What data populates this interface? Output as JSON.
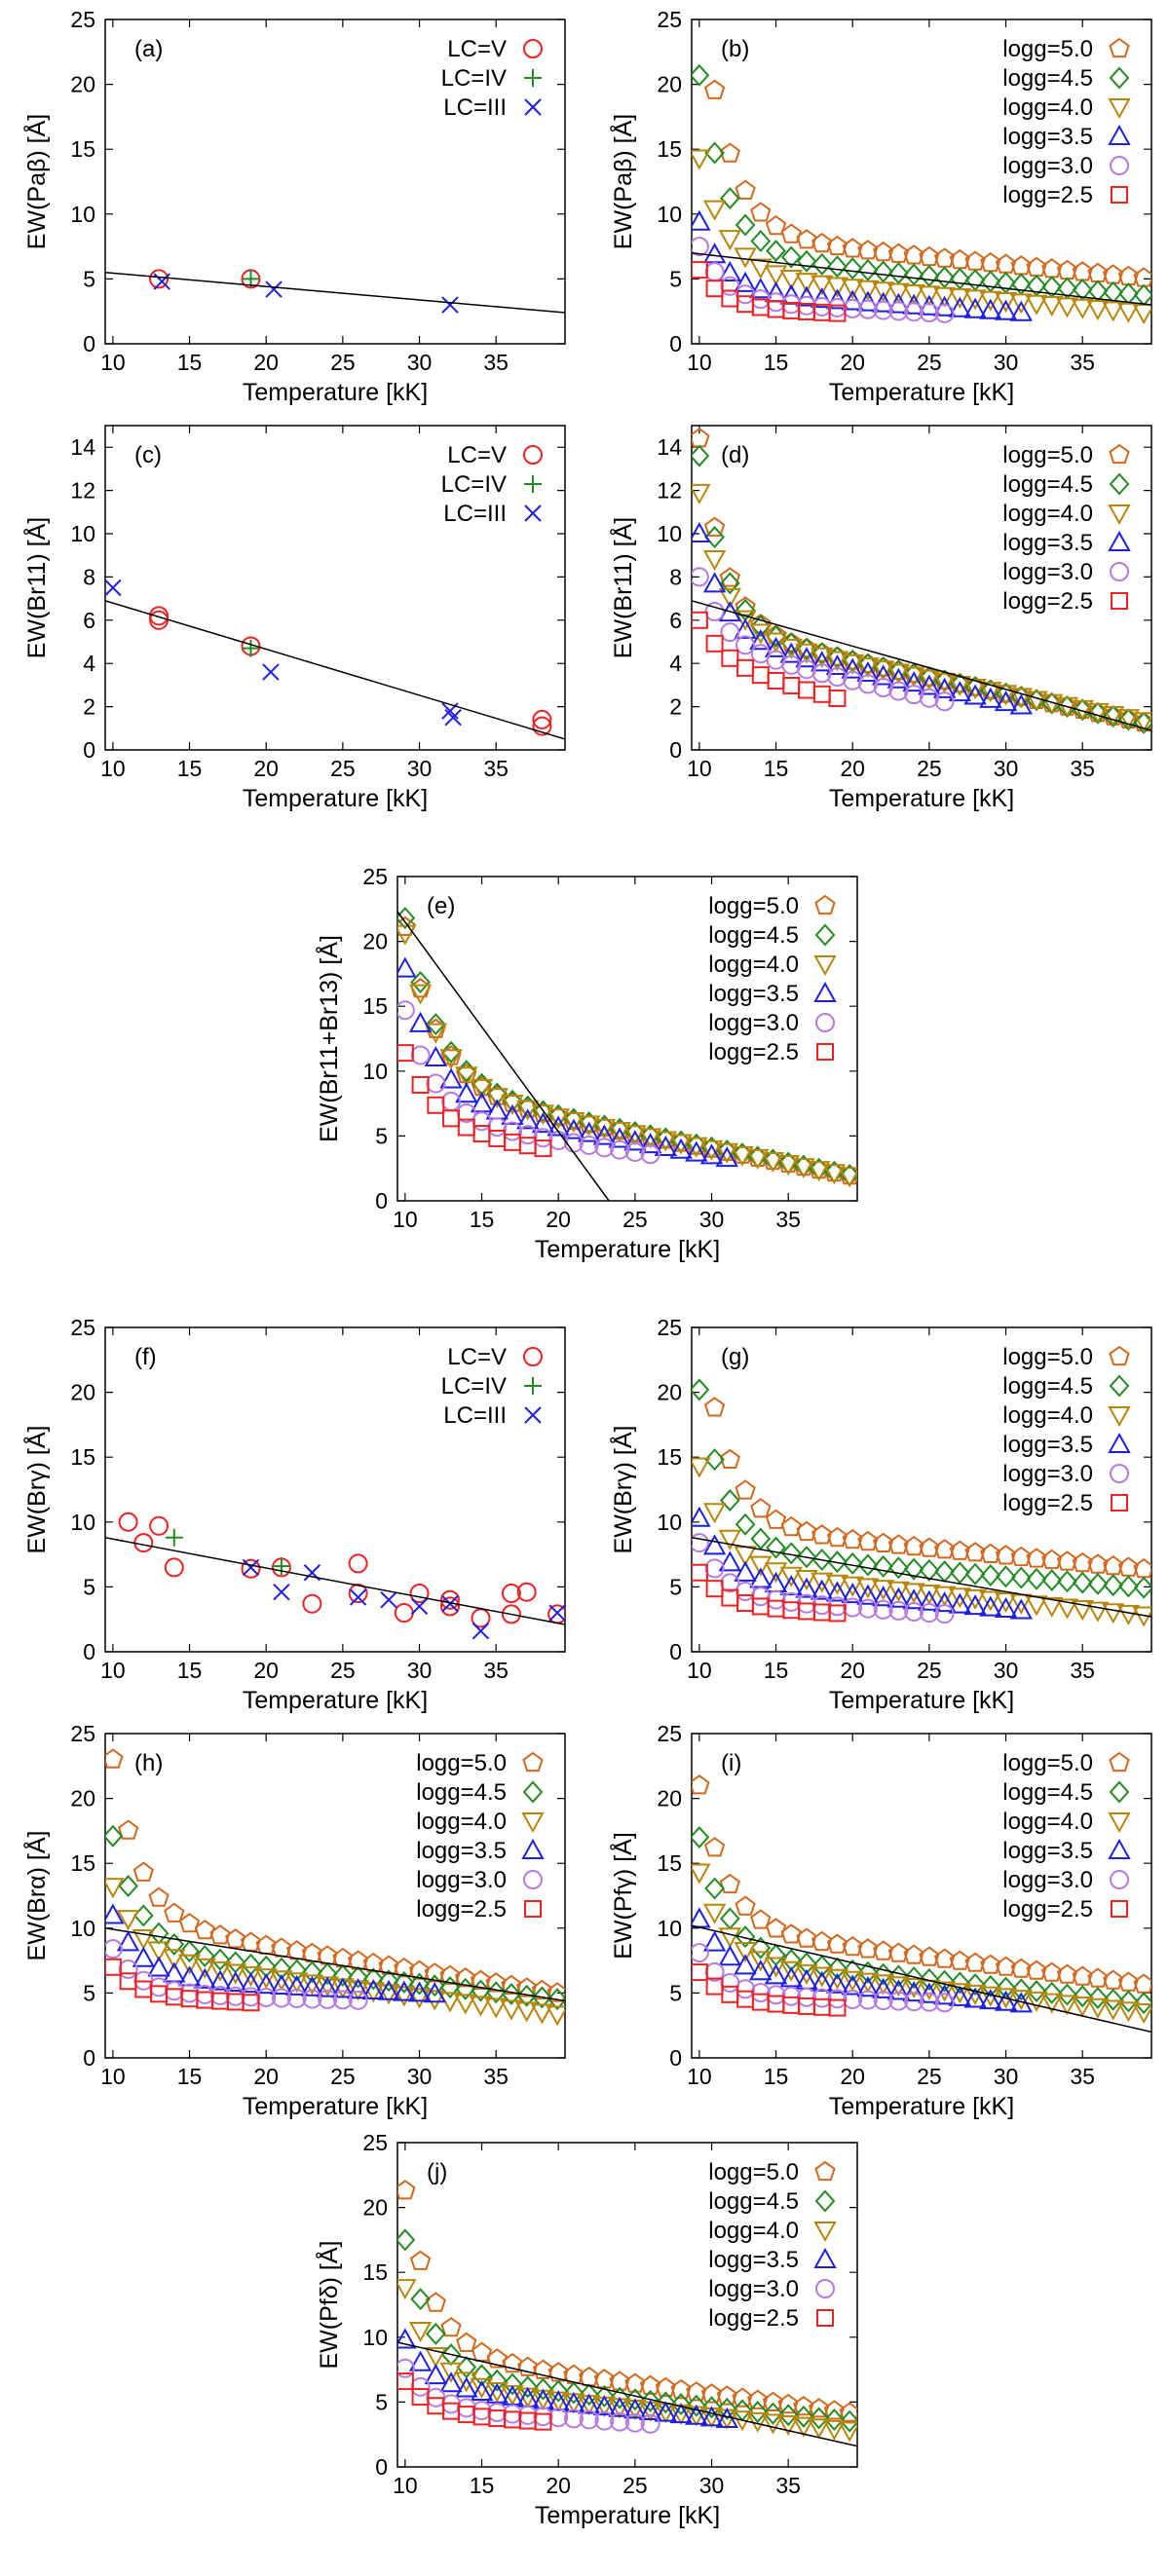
{
  "figure": {
    "marker_legend": {
      "logg": [
        {
          "label": "logg=5.0",
          "marker": "pentagon",
          "color": "#d2691e"
        },
        {
          "label": "logg=4.5",
          "marker": "diamond",
          "color": "#228b22"
        },
        {
          "label": "logg=4.0",
          "marker": "triangle-down",
          "color": "#b8860b"
        },
        {
          "label": "logg=3.5",
          "marker": "triangle-up",
          "color": "#1f1fe0"
        },
        {
          "label": "logg=3.0",
          "marker": "circle",
          "color": "#b57be0"
        },
        {
          "label": "logg=2.5",
          "marker": "square",
          "color": "#ee2222"
        }
      ],
      "lc": [
        {
          "label": "LC=V",
          "marker": "circle",
          "color": "#ee2222"
        },
        {
          "label": "LC=IV",
          "marker": "plus",
          "color": "#228b22"
        },
        {
          "label": "LC=III",
          "marker": "x",
          "color": "#1f1fe0"
        }
      ]
    }
  },
  "chart_data": [
    {
      "id": "a",
      "type": "scatter",
      "panel_label": "(a)",
      "xlabel": "Temperature [kK]",
      "ylabel": "EW(Paβ) [Å]",
      "xlim": [
        9.5,
        39.5
      ],
      "ylim": [
        0,
        25
      ],
      "xticks": [
        10,
        15,
        20,
        25,
        30,
        35
      ],
      "yticks": [
        0,
        5,
        10,
        15,
        20,
        25
      ],
      "legend": "lc",
      "series": [
        {
          "name": "LC=V",
          "points": [
            [
              13,
              5.0
            ],
            [
              19,
              5.0
            ]
          ]
        },
        {
          "name": "LC=IV",
          "points": [
            [
              19,
              5.0
            ]
          ]
        },
        {
          "name": "LC=III",
          "points": [
            [
              13.2,
              4.8
            ],
            [
              20.5,
              4.2
            ],
            [
              32,
              3.0
            ]
          ]
        }
      ],
      "fit_line": [
        [
          9.5,
          5.5
        ],
        [
          39.5,
          2.4
        ]
      ]
    },
    {
      "id": "b",
      "type": "scatter",
      "panel_label": "(b)",
      "xlabel": "Temperature [kK]",
      "ylabel": "EW(Paβ) [Å]",
      "xlim": [
        9.5,
        39.5
      ],
      "ylim": [
        0,
        25
      ],
      "xticks": [
        10,
        15,
        20,
        25,
        30,
        35
      ],
      "yticks": [
        0,
        5,
        10,
        15,
        20,
        25
      ],
      "legend": "logg",
      "models": {
        "logg=5.0": {
          "t0": 10,
          "t1": 39,
          "a": 19.5,
          "b": 8.4,
          "k": 0.55,
          "s": -0.115
        },
        "logg=4.5": {
          "t0": 10,
          "t1": 39,
          "a": 13.9,
          "b": 6.8,
          "k": 0.55,
          "s": -0.105
        },
        "logg=4.0": {
          "t0": 10,
          "t1": 39,
          "a": 9.0,
          "b": 5.3,
          "k": 0.55,
          "s": -0.1
        },
        "logg=3.5": {
          "t0": 10,
          "t1": 31,
          "a": 5.4,
          "b": 4.0,
          "k": 0.6,
          "s": -0.075
        },
        "logg=3.0": {
          "t0": 10,
          "t1": 26,
          "a": 4.2,
          "b": 3.3,
          "k": 0.6,
          "s": -0.06
        },
        "logg=2.5": {
          "t0": 10,
          "t1": 19,
          "a": 2.9,
          "b": 2.8,
          "k": 0.65,
          "s": -0.05
        }
      },
      "fit_line": [
        [
          9.5,
          7.0
        ],
        [
          39.5,
          3.0
        ]
      ]
    },
    {
      "id": "c",
      "type": "scatter",
      "panel_label": "(c)",
      "xlabel": "Temperature [kK]",
      "ylabel": "EW(Br11) [Å]",
      "xlim": [
        9.5,
        39.5
      ],
      "ylim": [
        0,
        15
      ],
      "xticks": [
        10,
        15,
        20,
        25,
        30,
        35
      ],
      "yticks": [
        0,
        2,
        4,
        6,
        8,
        10,
        12,
        14
      ],
      "legend": "lc",
      "series": [
        {
          "name": "LC=V",
          "points": [
            [
              13,
              6.2
            ],
            [
              13,
              6.0
            ],
            [
              19,
              4.8
            ],
            [
              38,
              1.4
            ],
            [
              38,
              1.1
            ]
          ]
        },
        {
          "name": "LC=IV",
          "points": [
            [
              19,
              4.7
            ]
          ]
        },
        {
          "name": "LC=III",
          "points": [
            [
              10,
              7.5
            ],
            [
              20.3,
              3.6
            ],
            [
              32,
              1.8
            ],
            [
              32.2,
              1.5
            ]
          ]
        }
      ],
      "fit_line": [
        [
          9.5,
          6.9
        ],
        [
          39.5,
          0.5
        ]
      ]
    },
    {
      "id": "d",
      "type": "scatter",
      "panel_label": "(d)",
      "xlabel": "Temperature [kK]",
      "ylabel": "EW(Br11) [Å]",
      "xlim": [
        9.5,
        39.5
      ],
      "ylim": [
        0,
        15
      ],
      "xticks": [
        10,
        15,
        20,
        25,
        30,
        35
      ],
      "yticks": [
        0,
        2,
        4,
        6,
        8,
        10,
        12,
        14
      ],
      "legend": "logg",
      "models": {
        "logg=5.0": {
          "t0": 10,
          "t1": 39,
          "a": 8.8,
          "b": 5.6,
          "k": 0.6,
          "s": -0.15
        },
        "logg=4.5": {
          "t0": 10,
          "t1": 39,
          "a": 8.0,
          "b": 5.6,
          "k": 0.6,
          "s": -0.15
        },
        "logg=4.0": {
          "t0": 10,
          "t1": 39,
          "a": 6.5,
          "b": 5.4,
          "k": 0.6,
          "s": -0.14
        },
        "logg=3.5": {
          "t0": 10,
          "t1": 31,
          "a": 4.8,
          "b": 5.2,
          "k": 0.6,
          "s": -0.15
        },
        "logg=3.0": {
          "t0": 10,
          "t1": 26,
          "a": 3.2,
          "b": 4.8,
          "k": 0.6,
          "s": -0.16
        },
        "logg=2.5": {
          "t0": 10,
          "t1": 19,
          "a": 2.0,
          "b": 4.0,
          "k": 0.6,
          "s": -0.18
        }
      },
      "fit_line": [
        [
          9.5,
          6.9
        ],
        [
          39.5,
          0.9
        ]
      ]
    },
    {
      "id": "e",
      "type": "scatter",
      "panel_label": "(e)",
      "xlabel": "Temperature [kK]",
      "ylabel": "EW(Br11+Br13) [Å]",
      "xlim": [
        9.5,
        39.5
      ],
      "ylim": [
        0,
        25
      ],
      "xticks": [
        10,
        15,
        20,
        25,
        30,
        35
      ],
      "yticks": [
        0,
        5,
        10,
        15,
        20,
        25
      ],
      "legend": "logg",
      "models": {
        "logg=5.0": {
          "t0": 10,
          "t1": 39,
          "a": 12.5,
          "b": 8.6,
          "k": 0.45,
          "s": -0.23
        },
        "logg=4.5": {
          "t0": 10,
          "t1": 39,
          "a": 13.0,
          "b": 8.8,
          "k": 0.45,
          "s": -0.235
        },
        "logg=4.0": {
          "t0": 10,
          "t1": 39,
          "a": 12.0,
          "b": 8.6,
          "k": 0.45,
          "s": -0.23
        },
        "logg=3.5": {
          "t0": 10,
          "t1": 31,
          "a": 10.2,
          "b": 7.7,
          "k": 0.5,
          "s": -0.21
        },
        "logg=3.0": {
          "t0": 10,
          "t1": 26,
          "a": 8.4,
          "b": 6.3,
          "k": 0.5,
          "s": -0.17
        },
        "logg=2.5": {
          "t0": 10,
          "t1": 19,
          "a": 5.8,
          "b": 5.6,
          "k": 0.5,
          "s": -0.18
        }
      },
      "fit_line": [
        [
          9.5,
          22.3
        ],
        [
          23.3,
          0
        ]
      ]
    },
    {
      "id": "f",
      "type": "scatter",
      "panel_label": "(f)",
      "xlabel": "Temperature [kK]",
      "ylabel": "EW(Brγ) [Å]",
      "xlim": [
        9.5,
        39.5
      ],
      "ylim": [
        0,
        25
      ],
      "xticks": [
        10,
        15,
        20,
        25,
        30,
        35
      ],
      "yticks": [
        0,
        5,
        10,
        15,
        20,
        25
      ],
      "legend": "lc",
      "series": [
        {
          "name": "LC=V",
          "points": [
            [
              11,
              10.0
            ],
            [
              12,
              8.4
            ],
            [
              13,
              9.7
            ],
            [
              14,
              6.5
            ],
            [
              19,
              6.4
            ],
            [
              21,
              6.5
            ],
            [
              23,
              3.7
            ],
            [
              26,
              6.8
            ],
            [
              26,
              4.5
            ],
            [
              29,
              3.0
            ],
            [
              30,
              4.5
            ],
            [
              32,
              4.0
            ],
            [
              32,
              3.5
            ],
            [
              34,
              2.6
            ],
            [
              36,
              2.9
            ],
            [
              36,
              4.5
            ],
            [
              37,
              4.6
            ],
            [
              39,
              2.9
            ]
          ]
        },
        {
          "name": "LC=IV",
          "points": [
            [
              14,
              8.8
            ],
            [
              21,
              6.6
            ]
          ]
        },
        {
          "name": "LC=III",
          "points": [
            [
              19,
              6.5
            ],
            [
              21,
              4.6
            ],
            [
              23,
              6.1
            ],
            [
              26,
              4.2
            ],
            [
              28,
              4.0
            ],
            [
              30,
              3.5
            ],
            [
              32,
              3.7
            ],
            [
              34,
              1.6
            ],
            [
              39,
              3.0
            ]
          ]
        }
      ],
      "fit_line": [
        [
          9.5,
          8.8
        ],
        [
          39.5,
          2.1
        ]
      ]
    },
    {
      "id": "g",
      "type": "scatter",
      "panel_label": "(g)",
      "xlabel": "Temperature [kK]",
      "ylabel": "EW(Brγ) [Å]",
      "xlim": [
        9.5,
        39.5
      ],
      "ylim": [
        0,
        25
      ],
      "xticks": [
        10,
        15,
        20,
        25,
        30,
        35
      ],
      "yticks": [
        0,
        5,
        10,
        15,
        20,
        25
      ],
      "legend": "logg",
      "models": {
        "logg=5.0": {
          "t0": 10,
          "t1": 39,
          "a": 16.0,
          "b": 9.7,
          "k": 0.55,
          "s": -0.115
        },
        "logg=4.5": {
          "t0": 10,
          "t1": 39,
          "a": 12.5,
          "b": 7.7,
          "k": 0.55,
          "s": -0.095
        },
        "logg=4.0": {
          "t0": 10,
          "t1": 39,
          "a": 8.0,
          "b": 6.3,
          "k": 0.55,
          "s": -0.12
        },
        "logg=3.5": {
          "t0": 10,
          "t1": 31,
          "a": 4.8,
          "b": 5.5,
          "k": 0.55,
          "s": -0.11
        },
        "logg=3.0": {
          "t0": 10,
          "t1": 26,
          "a": 4.2,
          "b": 4.2,
          "k": 0.6,
          "s": -0.08
        },
        "logg=2.5": {
          "t0": 10,
          "t1": 19,
          "a": 2.6,
          "b": 3.5,
          "k": 0.6,
          "s": -0.06
        }
      },
      "fit_line": [
        [
          9.5,
          8.8
        ],
        [
          39.5,
          2.7
        ]
      ]
    },
    {
      "id": "h",
      "type": "scatter",
      "panel_label": "(h)",
      "xlabel": "Temperature [kK]",
      "ylabel": "EW(Brα) [Å]",
      "xlim": [
        9.5,
        39.5
      ],
      "ylim": [
        0,
        25
      ],
      "xticks": [
        10,
        15,
        20,
        25,
        30,
        35
      ],
      "yticks": [
        0,
        5,
        10,
        15,
        20,
        25
      ],
      "legend": "logg",
      "models": {
        "logg=5.0": {
          "t0": 10,
          "t1": 39,
          "a": 12.5,
          "b": 10.5,
          "k": 0.55,
          "s": -0.19
        },
        "logg=4.5": {
          "t0": 10,
          "t1": 39,
          "a": 8.8,
          "b": 8.3,
          "k": 0.55,
          "s": -0.13
        },
        "logg=4.0": {
          "t0": 10,
          "t1": 39,
          "a": 5.5,
          "b": 7.7,
          "k": 0.55,
          "s": -0.15
        },
        "logg=3.5": {
          "t0": 10,
          "t1": 31,
          "a": 4.8,
          "b": 6.2,
          "k": 0.55,
          "s": -0.06
        },
        "logg=3.0": {
          "t0": 10,
          "t1": 26,
          "a": 3.4,
          "b": 5.0,
          "k": 0.6,
          "s": -0.035
        },
        "logg=2.5": {
          "t0": 10,
          "t1": 19,
          "a": 2.3,
          "b": 4.7,
          "k": 0.6,
          "s": -0.05
        }
      },
      "fit_line": [
        [
          9.5,
          10.0
        ],
        [
          39.5,
          4.4
        ]
      ]
    },
    {
      "id": "i",
      "type": "scatter",
      "panel_label": "(i)",
      "xlabel": "Temperature [kK]",
      "ylabel": "EW(Pfγ) [Å]",
      "xlim": [
        9.5,
        39.5
      ],
      "ylim": [
        0,
        25
      ],
      "xticks": [
        10,
        15,
        20,
        25,
        30,
        35
      ],
      "yticks": [
        0,
        5,
        10,
        15,
        20,
        25
      ],
      "legend": "logg",
      "models": {
        "logg=5.0": {
          "t0": 10,
          "t1": 39,
          "a": 11.0,
          "b": 10.0,
          "k": 0.55,
          "s": -0.15
        },
        "logg=4.5": {
          "t0": 10,
          "t1": 39,
          "a": 9.0,
          "b": 8.0,
          "k": 0.55,
          "s": -0.13
        },
        "logg=4.0": {
          "t0": 10,
          "t1": 39,
          "a": 7.0,
          "b": 7.3,
          "k": 0.55,
          "s": -0.13
        },
        "logg=3.5": {
          "t0": 10,
          "t1": 31,
          "a": 4.0,
          "b": 6.7,
          "k": 0.55,
          "s": -0.12
        },
        "logg=3.0": {
          "t0": 10,
          "t1": 26,
          "a": 3.2,
          "b": 4.9,
          "k": 0.6,
          "s": -0.04
        },
        "logg=2.5": {
          "t0": 10,
          "t1": 19,
          "a": 2.3,
          "b": 4.3,
          "k": 0.6,
          "s": -0.05
        }
      },
      "fit_line": [
        [
          9.5,
          10.2
        ],
        [
          39.5,
          2.0
        ]
      ]
    },
    {
      "id": "j",
      "type": "scatter",
      "panel_label": "(j)",
      "xlabel": "Temperature [kK]",
      "ylabel": "EW(Pfδ) [Å]",
      "xlim": [
        9.5,
        39.5
      ],
      "ylim": [
        0,
        25
      ],
      "xticks": [
        10,
        15,
        20,
        25,
        30,
        35
      ],
      "yticks": [
        0,
        5,
        10,
        15,
        20,
        25
      ],
      "legend": "logg",
      "models": {
        "logg=5.0": {
          "t0": 10,
          "t1": 39,
          "a": 12.5,
          "b": 8.8,
          "k": 0.55,
          "s": -0.16
        },
        "logg=4.5": {
          "t0": 10,
          "t1": 39,
          "a": 10.5,
          "b": 7.0,
          "k": 0.55,
          "s": -0.12
        },
        "logg=4.0": {
          "t0": 10,
          "t1": 39,
          "a": 7.5,
          "b": 6.3,
          "k": 0.55,
          "s": -0.12
        },
        "logg=3.5": {
          "t0": 10,
          "t1": 31,
          "a": 3.6,
          "b": 6.2,
          "k": 0.6,
          "s": -0.12
        },
        "logg=3.0": {
          "t0": 10,
          "t1": 26,
          "a": 3.0,
          "b": 4.6,
          "k": 0.6,
          "s": -0.08
        },
        "logg=2.5": {
          "t0": 10,
          "t1": 19,
          "a": 2.5,
          "b": 4.1,
          "k": 0.6,
          "s": -0.07
        }
      },
      "fit_line": [
        [
          9.5,
          9.6
        ],
        [
          39.5,
          1.6
        ]
      ]
    }
  ]
}
